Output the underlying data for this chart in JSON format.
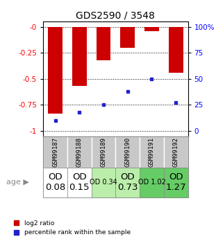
{
  "title": "GDS2590 / 3548",
  "samples": [
    "GSM99187",
    "GSM99188",
    "GSM99189",
    "GSM99190",
    "GSM99191",
    "GSM99192"
  ],
  "log2_ratios": [
    -0.83,
    -0.57,
    -0.32,
    -0.2,
    -0.04,
    -0.44
  ],
  "percentile_ranks": [
    0.1,
    0.18,
    0.25,
    0.38,
    0.5,
    0.27
  ],
  "bar_color": "#cc0000",
  "marker_color": "#2222cc",
  "ylim_left": [
    -1.05,
    0.05
  ],
  "yticks_left": [
    0.0,
    -0.25,
    -0.5,
    -0.75,
    -1.0
  ],
  "ytick_labels_left": [
    "-0",
    "-0.25",
    "-0.5",
    "-0.75",
    "-1"
  ],
  "ylim_right": [
    -0.05,
    1.05
  ],
  "yticks_right": [
    0.0,
    0.25,
    0.5,
    0.75,
    1.0
  ],
  "ytick_labels_right": [
    "0",
    "25",
    "50",
    "75",
    "100%"
  ],
  "age_labels": [
    "OD\n0.08",
    "OD\n0.15",
    "OD 0.34",
    "OD\n0.73",
    "OD 1.02",
    "OD\n1.27"
  ],
  "age_small": [
    false,
    false,
    true,
    false,
    true,
    false
  ],
  "cell_bg_gray": "#c8c8c8",
  "age_bg": [
    "#ffffff",
    "#ffffff",
    "#bbeeaa",
    "#bbeeaa",
    "#66cc66",
    "#66cc66"
  ],
  "legend_red_label": "log2 ratio",
  "legend_blue_label": "percentile rank within the sample"
}
